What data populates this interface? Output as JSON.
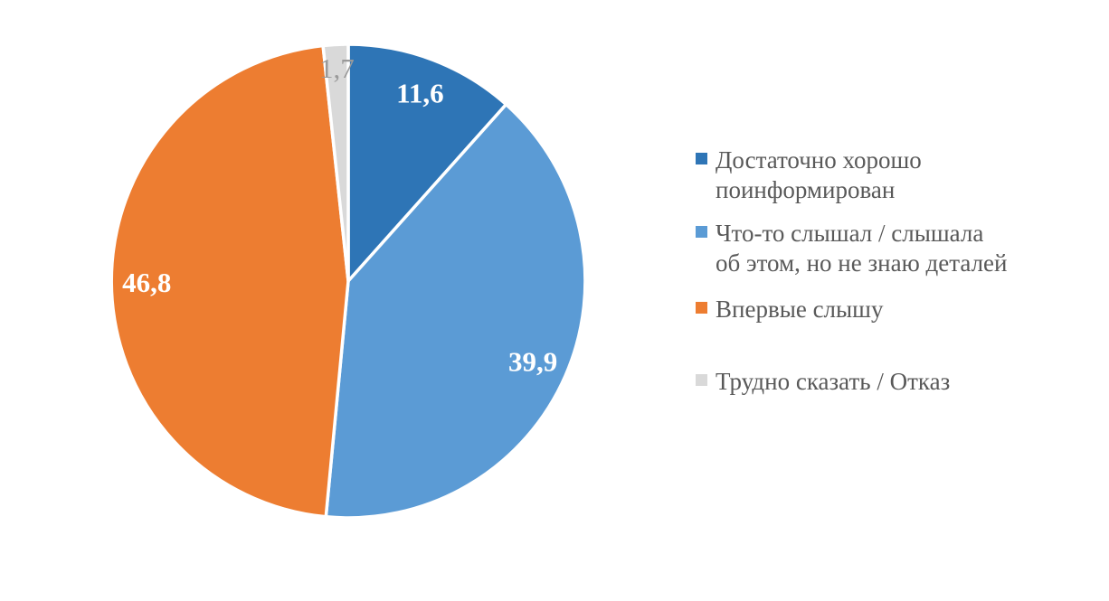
{
  "chart_data": {
    "type": "pie",
    "title": "",
    "unit": "percent",
    "start_angle_deg": 0,
    "direction": "clockwise",
    "background": "#FFFFFF",
    "legend_position": "right",
    "legend_text_color": "#595959",
    "separator_color": "#FFFFFF",
    "slices": [
      {
        "label": "Достаточно хорошо\nпоинформирован",
        "value": 11.6,
        "display": "11,6",
        "color": "#2E75B6",
        "label_color": "#FFFFFF",
        "label_weight": "bold"
      },
      {
        "label": "Что-то слышал / слышала\nоб этом, но не знаю деталей",
        "value": 39.9,
        "display": "39,9",
        "color": "#5B9BD5",
        "label_color": "#FFFFFF",
        "label_weight": "bold"
      },
      {
        "label": "Впервые слышу",
        "value": 46.8,
        "display": "46,8",
        "color": "#ED7D31",
        "label_color": "#FFFFFF",
        "label_weight": "bold"
      },
      {
        "label": "Трудно сказать / Отказ",
        "value": 1.7,
        "display": "1,7",
        "color": "#D9D9D9",
        "label_color": "#9A9A9A",
        "label_weight": "normal"
      }
    ]
  }
}
